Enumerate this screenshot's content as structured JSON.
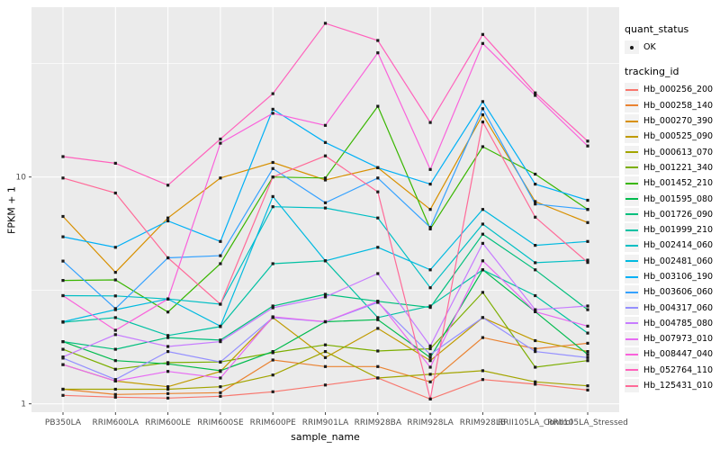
{
  "figure": {
    "background": "#FFFFFF",
    "panel_bg": "#EBEBEB",
    "grid_color": "#FFFFFF",
    "tick_color": "#333333",
    "tick_label_color": "#4D4D4D",
    "marker_color": "#1A1A1A",
    "legend_key_bg": "#F2F2F2"
  },
  "legend": {
    "quant_status_title": "quant_status",
    "quant_status_items": [
      "OK"
    ],
    "tracking_id_title": "tracking_id"
  },
  "chart_data": {
    "type": "line",
    "title": "",
    "xlabel": "sample_name",
    "ylabel": "FPKM + 1",
    "y_scale": "log10",
    "y_ticks": [
      1,
      10
    ],
    "ylim": [
      0.92,
      56
    ],
    "grid": true,
    "legend_position": "right",
    "x_categories": [
      "PB350LA",
      "RRIM600LA",
      "RRIM600LE",
      "RRIM600SE",
      "RRIM600PE",
      "RRIM901LA",
      "RRIM928BA",
      "RRIM928LA",
      "RRIM928LB",
      "RRII105LA_Control",
      "RRII105LA_Stressed"
    ],
    "series": [
      {
        "name": "Hb_000256_200",
        "color": "#F8766D",
        "values": [
          1.09,
          1.07,
          1.06,
          1.08,
          1.13,
          1.21,
          1.3,
          1.05,
          1.28,
          1.22,
          1.15
        ]
      },
      {
        "name": "Hb_000258_140",
        "color": "#EA8331",
        "values": [
          1.16,
          1.1,
          1.11,
          1.12,
          1.56,
          1.46,
          1.46,
          1.25,
          1.96,
          1.75,
          1.85
        ]
      },
      {
        "name": "Hb_000270_390",
        "color": "#D89000",
        "values": [
          6.7,
          3.8,
          6.6,
          9.9,
          11.6,
          9.7,
          11.0,
          7.2,
          18.8,
          7.8,
          6.3
        ]
      },
      {
        "name": "Hb_000525_090",
        "color": "#C09B00",
        "values": [
          1.49,
          1.26,
          1.19,
          1.39,
          2.4,
          1.6,
          2.15,
          1.55,
          2.4,
          1.9,
          1.7
        ]
      },
      {
        "name": "Hb_000613_070",
        "color": "#A3A500",
        "values": [
          1.16,
          1.16,
          1.16,
          1.19,
          1.34,
          1.7,
          1.3,
          1.35,
          1.4,
          1.25,
          1.2
        ]
      },
      {
        "name": "Hb_001221_340",
        "color": "#7CAE00",
        "values": [
          1.74,
          1.42,
          1.52,
          1.53,
          1.68,
          1.82,
          1.71,
          1.75,
          3.1,
          1.45,
          1.55
        ]
      },
      {
        "name": "Hb_001452_210",
        "color": "#39B600",
        "values": [
          3.5,
          3.52,
          2.54,
          4.15,
          10.0,
          9.9,
          20.5,
          5.9,
          13.6,
          10.3,
          7.2
        ]
      },
      {
        "name": "Hb_001595_080",
        "color": "#00BB4E",
        "values": [
          1.88,
          1.55,
          1.5,
          1.4,
          1.7,
          2.3,
          2.35,
          1.6,
          3.9,
          2.55,
          1.65
        ]
      },
      {
        "name": "Hb_001726_090",
        "color": "#00BF7D",
        "values": [
          1.88,
          1.74,
          1.96,
          1.91,
          2.7,
          3.04,
          2.83,
          2.66,
          5.6,
          3.9,
          2.6
        ]
      },
      {
        "name": "Hb_001999_210",
        "color": "#00C1A3",
        "values": [
          2.29,
          2.4,
          2.0,
          2.19,
          4.15,
          4.27,
          2.4,
          2.7,
          3.9,
          3.0,
          2.05
        ]
      },
      {
        "name": "Hb_002414_060",
        "color": "#00BFC4",
        "values": [
          3.0,
          2.99,
          2.9,
          2.75,
          7.4,
          7.3,
          6.6,
          3.25,
          6.2,
          4.19,
          4.3
        ]
      },
      {
        "name": "Hb_002481_060",
        "color": "#00BAE0",
        "values": [
          2.3,
          2.6,
          2.9,
          2.2,
          8.2,
          4.27,
          4.9,
          3.9,
          7.2,
          5.0,
          5.2
        ]
      },
      {
        "name": "Hb_003106_190",
        "color": "#00B0F6",
        "values": [
          5.45,
          4.9,
          6.4,
          5.2,
          19.9,
          14.2,
          11.0,
          9.3,
          21.5,
          9.3,
          7.9
        ]
      },
      {
        "name": "Hb_003606_060",
        "color": "#35A2FF",
        "values": [
          4.26,
          2.63,
          4.4,
          4.5,
          10.9,
          7.7,
          9.9,
          6.0,
          20.0,
          7.6,
          7.2
        ]
      },
      {
        "name": "Hb_004317_060",
        "color": "#9590FF",
        "values": [
          1.59,
          1.28,
          1.7,
          1.53,
          2.4,
          2.3,
          2.8,
          1.65,
          2.4,
          1.7,
          1.6
        ]
      },
      {
        "name": "Hb_004785_080",
        "color": "#C77CFF",
        "values": [
          1.61,
          2.02,
          1.79,
          1.88,
          2.65,
          2.96,
          3.75,
          1.8,
          5.1,
          2.6,
          2.7
        ]
      },
      {
        "name": "Hb_007973_010",
        "color": "#E76BF3",
        "values": [
          1.49,
          1.26,
          1.39,
          1.3,
          2.42,
          2.3,
          2.83,
          1.45,
          4.27,
          2.55,
          2.2
        ]
      },
      {
        "name": "Hb_008447_040",
        "color": "#FA62DB",
        "values": [
          3.0,
          2.11,
          2.9,
          14.1,
          19.1,
          16.9,
          35.3,
          10.8,
          38.8,
          22.9,
          13.7
        ]
      },
      {
        "name": "Hb_052764_110",
        "color": "#FF62BC",
        "values": [
          12.3,
          11.5,
          9.2,
          14.7,
          23.3,
          47.6,
          40.0,
          17.4,
          42.5,
          23.5,
          14.4
        ]
      },
      {
        "name": "Hb_125431_010",
        "color": "#FF6A98",
        "values": [
          9.9,
          8.5,
          4.4,
          2.75,
          10.0,
          12.4,
          8.6,
          1.05,
          17.5,
          6.65,
          4.2
        ]
      }
    ]
  }
}
